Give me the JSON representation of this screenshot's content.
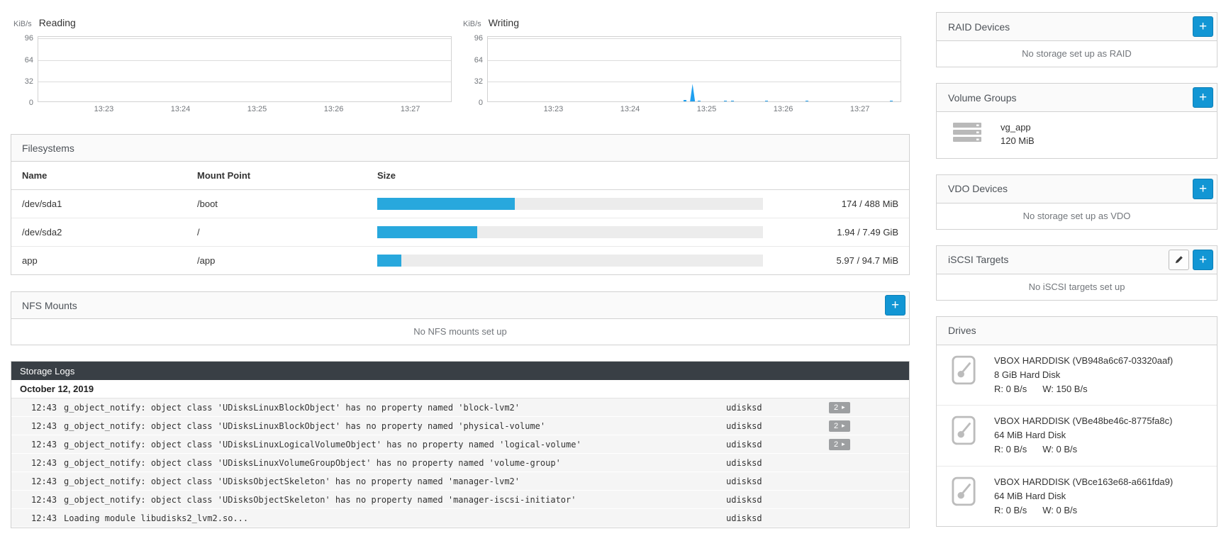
{
  "colors": {
    "accent": "#1296d4",
    "bar_fill": "#28a8dd",
    "spike_blue": "#1fa0f0",
    "logs_header_bg": "#393f45"
  },
  "charts": {
    "unit": "KiB/s",
    "yticks": [
      "96",
      "64",
      "32",
      "0"
    ],
    "xticks": [
      "13:23",
      "13:24",
      "13:25",
      "13:26",
      "13:27"
    ],
    "xtick_fracs": [
      16,
      34.5,
      53,
      71.5,
      90
    ],
    "ymax": 96,
    "reading": {
      "title": "Reading",
      "points": []
    },
    "writing": {
      "title": "Writing",
      "points": [
        {
          "frac": 47.5,
          "kibs": 2.5
        },
        {
          "frac": 49.0,
          "kibs": 26,
          "w": 7,
          "spike": true
        },
        {
          "frac": 50.8,
          "kibs": 1.5
        },
        {
          "frac": 57.2,
          "kibs": 1.2
        },
        {
          "frac": 59.0,
          "kibs": 1.2
        },
        {
          "frac": 67.1,
          "kibs": 1
        },
        {
          "frac": 77.0,
          "kibs": 1.5
        },
        {
          "frac": 97.4,
          "kibs": 1
        }
      ]
    }
  },
  "filesystems": {
    "title": "Filesystems",
    "columns": [
      "Name",
      "Mount Point",
      "Size"
    ],
    "rows": [
      {
        "name": "/dev/sda1",
        "mount": "/boot",
        "used_pct": 35.7,
        "usage": "174 / 488 MiB"
      },
      {
        "name": "/dev/sda2",
        "mount": "/",
        "used_pct": 25.9,
        "usage": "1.94 / 7.49 GiB"
      },
      {
        "name": "app",
        "mount": "/app",
        "used_pct": 6.3,
        "usage": "5.97 / 94.7 MiB"
      }
    ]
  },
  "nfs": {
    "title": "NFS Mounts",
    "add_label": "+",
    "empty": "No NFS mounts set up"
  },
  "logs": {
    "title": "Storage Logs",
    "date": "October 12, 2019",
    "entries": [
      {
        "time": "12:43",
        "message": "g_object_notify: object class 'UDisksLinuxBlockObject' has no property named 'block-lvm2'",
        "service": "udisksd",
        "badge": "2"
      },
      {
        "time": "12:43",
        "message": "g_object_notify: object class 'UDisksLinuxBlockObject' has no property named 'physical-volume'",
        "service": "udisksd",
        "badge": "2"
      },
      {
        "time": "12:43",
        "message": "g_object_notify: object class 'UDisksLinuxLogicalVolumeObject' has no property named 'logical-volume'",
        "service": "udisksd",
        "badge": "2"
      },
      {
        "time": "12:43",
        "message": "g_object_notify: object class 'UDisksLinuxVolumeGroupObject' has no property named 'volume-group'",
        "service": "udisksd"
      },
      {
        "time": "12:43",
        "message": "g_object_notify: object class 'UDisksObjectSkeleton' has no property named 'manager-lvm2'",
        "service": "udisksd"
      },
      {
        "time": "12:43",
        "message": "g_object_notify: object class 'UDisksObjectSkeleton' has no property named 'manager-iscsi-initiator'",
        "service": "udisksd"
      },
      {
        "time": "12:43",
        "message": "Loading module libudisks2_lvm2.so...",
        "service": "udisksd"
      }
    ]
  },
  "sidebar": {
    "raid": {
      "title": "RAID Devices",
      "add_label": "+",
      "empty": "No storage set up as RAID"
    },
    "volume_groups": {
      "title": "Volume Groups",
      "add_label": "+",
      "items": [
        {
          "name": "vg_app",
          "size": "120 MiB"
        }
      ]
    },
    "vdo": {
      "title": "VDO Devices",
      "add_label": "+",
      "empty": "No storage set up as VDO"
    },
    "iscsi": {
      "title": "iSCSI Targets",
      "add_label": "+",
      "empty": "No iSCSI targets set up"
    },
    "drives": {
      "title": "Drives",
      "items": [
        {
          "name": "VBOX HARDDISK (VB948a6c67-03320aaf)",
          "desc": "8 GiB Hard Disk",
          "read": "R: 0 B/s",
          "write": "W: 150 B/s"
        },
        {
          "name": "VBOX HARDDISK (VBe48be46c-8775fa8c)",
          "desc": "64 MiB Hard Disk",
          "read": "R: 0 B/s",
          "write": "W: 0 B/s"
        },
        {
          "name": "VBOX HARDDISK (VBce163e68-a661fda9)",
          "desc": "64 MiB Hard Disk",
          "read": "R: 0 B/s",
          "write": "W: 0 B/s"
        }
      ]
    }
  },
  "icons": {
    "expand_caret": "▸"
  }
}
